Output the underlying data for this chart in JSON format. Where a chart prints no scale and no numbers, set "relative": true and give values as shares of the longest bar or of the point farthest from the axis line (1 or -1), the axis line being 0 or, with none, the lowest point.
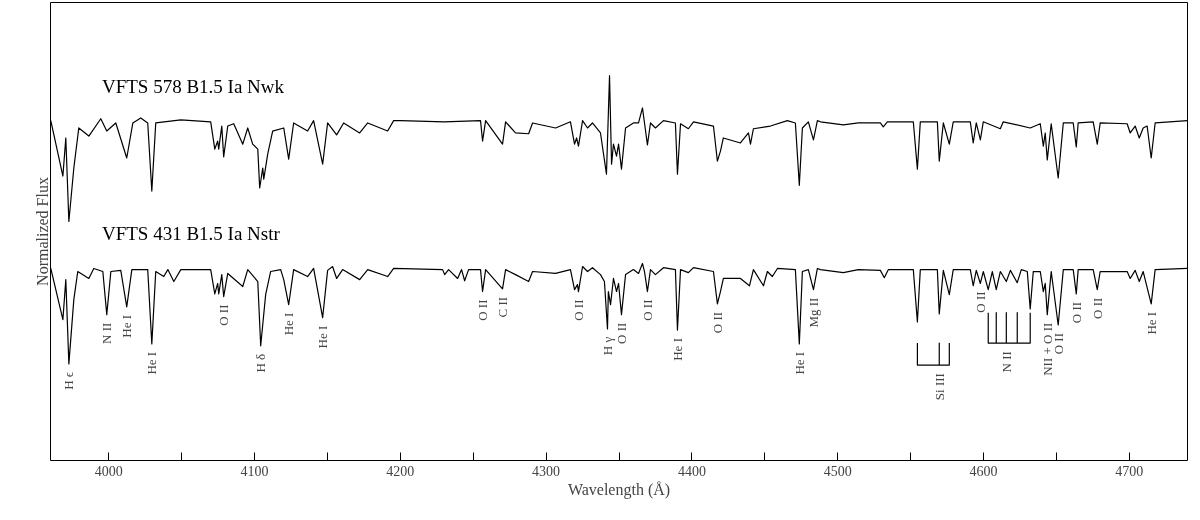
{
  "chart_data": {
    "type": "line",
    "relative": true,
    "xlabel": "Wavelength (Å)",
    "ylabel": "Normalized Flux",
    "xlim": [
      3960,
      4740
    ],
    "xticks": [
      4000,
      {
        "value": 4050,
        "label": null
      },
      4100,
      {
        "value": 4150,
        "label": null
      },
      4200,
      {
        "value": 4250,
        "label": null
      },
      4300,
      {
        "value": 4350,
        "label": null
      },
      4400,
      {
        "value": 4450,
        "label": null
      },
      4500,
      {
        "value": 4550,
        "label": null
      },
      4600,
      {
        "value": 4650,
        "label": null
      },
      4700
    ],
    "grid": false,
    "legend": false,
    "marker": "none",
    "line_style": "solid",
    "series": [
      {
        "name": "VFTS 578    B1.5 Ia Nwk",
        "color": "#000000",
        "x": [
          3960.2,
          3968.5,
          3970.5,
          3972.6,
          3976.0,
          3979.4,
          3986.3,
          3994.5,
          3998.6,
          4004.8,
          4012.3,
          4016.5,
          4021.9,
          4026.7,
          4029.5,
          4032.2,
          4049.4,
          4069.9,
          4072.7,
          4074.7,
          4075.4,
          4077.5,
          4078.8,
          4081.6,
          4085.7,
          4091.9,
          4095.3,
          4098.7,
          4102.2,
          4103.5,
          4105.6,
          4106.3,
          4109.0,
          4112.4,
          4120.0,
          4123.4,
          4126.8,
          4136.4,
          4140.5,
          4146.7,
          4150.1,
          4156.3,
          4161.1,
          4172.1,
          4177.6,
          4191.3,
          4195.4,
          4200.2,
          4230.0,
          4255.0,
          4256.4,
          4258.5,
          4270.1,
          4272.2,
          4279.0,
          4288.0,
          4290.7,
          4306.5,
          4316.7,
          4319.5,
          4320.9,
          4322.2,
          4325.0,
          4328.4,
          4331.8,
          4337.3,
          4341.4,
          4343.5,
          4344.9,
          4346.2,
          4348.3,
          4349.7,
          4351.7,
          4354.5,
          4359.9,
          4363.4,
          4366.1,
          4367.5,
          4369.5,
          4371.6,
          4375.0,
          4380.5,
          4388.7,
          4390.1,
          4392.2,
          4397.6,
          4401.1,
          4414.8,
          4417.5,
          4419.6,
          4421.6,
          4433.3,
          4438.8,
          4440.2,
          4442.2,
          4453.9,
          4465.5,
          4471.0,
          4473.7,
          4475.8,
          4479.9,
          4483.4,
          4486.1,
          4488.2,
          4503.9,
          4514.2,
          4529.3,
          4531.3,
          4534.1,
          4551.9,
          4554.7,
          4556.7,
          4568.4,
          4569.7,
          4572.5,
          4576.6,
          4579.3,
          4591.0,
          4593.0,
          4595.1,
          4597.9,
          4599.9,
          4611.6,
          4613.6,
          4632.1,
          4639.0,
          4641.1,
          4642.4,
          4643.8,
          4646.5,
          4651.3,
          4654.8,
          4661.6,
          4663.7,
          4665.0,
          4675.3,
          4678.1,
          4680.1,
          4698.6,
          4700.7,
          4704.1,
          4706.9,
          4709.6,
          4712.3,
          4715.1,
          4717.8,
          4740.0
        ],
        "values": [
          0.883,
          0.739,
          0.838,
          0.621,
          0.76,
          0.864,
          0.843,
          0.888,
          0.856,
          0.877,
          0.786,
          0.877,
          0.89,
          0.877,
          0.7,
          0.877,
          0.885,
          0.88,
          0.809,
          0.83,
          0.809,
          0.869,
          0.789,
          0.869,
          0.875,
          0.822,
          0.864,
          0.822,
          0.809,
          0.708,
          0.76,
          0.731,
          0.796,
          0.856,
          0.864,
          0.783,
          0.877,
          0.856,
          0.883,
          0.77,
          0.877,
          0.846,
          0.877,
          0.851,
          0.877,
          0.856,
          0.883,
          0.883,
          0.88,
          0.883,
          0.83,
          0.883,
          0.822,
          0.88,
          0.851,
          0.849,
          0.877,
          0.864,
          0.88,
          0.822,
          0.838,
          0.817,
          0.883,
          0.864,
          0.877,
          0.851,
          0.744,
          1.0,
          0.77,
          0.822,
          0.791,
          0.822,
          0.757,
          0.864,
          0.877,
          0.877,
          0.916,
          0.877,
          0.82,
          0.877,
          0.864,
          0.883,
          0.877,
          0.744,
          0.875,
          0.862,
          0.88,
          0.869,
          0.778,
          0.804,
          0.838,
          0.825,
          0.851,
          0.822,
          0.862,
          0.869,
          0.883,
          0.877,
          0.715,
          0.864,
          0.88,
          0.833,
          0.883,
          0.88,
          0.872,
          0.877,
          0.877,
          0.867,
          0.88,
          0.88,
          0.757,
          0.88,
          0.88,
          0.778,
          0.877,
          0.822,
          0.88,
          0.88,
          0.825,
          0.877,
          0.833,
          0.88,
          0.862,
          0.88,
          0.864,
          0.875,
          0.817,
          0.851,
          0.781,
          0.875,
          0.734,
          0.877,
          0.877,
          0.815,
          0.877,
          0.88,
          0.822,
          0.877,
          0.875,
          0.851,
          0.869,
          0.838,
          0.864,
          0.869,
          0.786,
          0.877,
          0.883
        ]
      },
      {
        "name": "VFTS 431    B1.5 Ia Nstr",
        "color": "#000000",
        "x": [
          3960.2,
          3968.5,
          3970.5,
          3972.6,
          3976.0,
          3978.7,
          3986.3,
          3989.7,
          3995.9,
          3998.6,
          4001.4,
          4008.2,
          4012.3,
          4015.8,
          4026.7,
          4029.5,
          4032.2,
          4037.7,
          4040.5,
          4044.6,
          4049.4,
          4069.9,
          4072.7,
          4074.7,
          4075.4,
          4077.5,
          4078.8,
          4081.6,
          4091.9,
          4095.3,
          4102.2,
          4104.2,
          4107.6,
          4111.0,
          4117.9,
          4120.0,
          4123.4,
          4126.8,
          4136.4,
          4140.5,
          4146.7,
          4150.1,
          4153.5,
          4156.3,
          4160.4,
          4172.1,
          4177.6,
          4191.3,
          4195.4,
          4229.0,
          4230.4,
          4233.1,
          4239.3,
          4242.0,
          4244.1,
          4246.8,
          4255.0,
          4256.4,
          4258.5,
          4270.1,
          4272.2,
          4279.0,
          4288.0,
          4290.7,
          4306.5,
          4316.7,
          4319.5,
          4321.5,
          4322.2,
          4325.0,
          4328.4,
          4331.8,
          4337.3,
          4340.0,
          4342.1,
          4342.7,
          4344.2,
          4346.2,
          4348.3,
          4349.7,
          4351.7,
          4354.5,
          4359.9,
          4363.4,
          4366.1,
          4367.5,
          4369.5,
          4371.6,
          4375.0,
          4380.5,
          4388.7,
          4390.1,
          4392.2,
          4397.6,
          4401.1,
          4414.8,
          4417.5,
          4419.6,
          4421.6,
          4433.3,
          4439.5,
          4442.2,
          4449.1,
          4451.8,
          4455.2,
          4458.7,
          4471.0,
          4473.7,
          4475.8,
          4479.9,
          4483.4,
          4486.1,
          4488.2,
          4503.9,
          4514.2,
          4529.3,
          4532.0,
          4534.8,
          4551.9,
          4554.7,
          4556.7,
          4568.4,
          4569.7,
          4572.5,
          4576.6,
          4579.3,
          4591.0,
          4593.0,
          4595.1,
          4597.9,
          4599.9,
          4603.3,
          4606.1,
          4608.8,
          4611.6,
          4615.7,
          4618.5,
          4623.2,
          4626.0,
          4630.1,
          4632.1,
          4634.2,
          4639.0,
          4641.1,
          4642.4,
          4643.8,
          4646.5,
          4651.3,
          4654.8,
          4661.6,
          4663.7,
          4665.0,
          4675.3,
          4678.1,
          4680.1,
          4698.6,
          4700.7,
          4704.1,
          4706.9,
          4709.6,
          4715.1,
          4717.8,
          4740.0
        ],
        "values": [
          0.499,
          0.366,
          0.47,
          0.251,
          0.418,
          0.491,
          0.473,
          0.499,
          0.491,
          0.379,
          0.491,
          0.494,
          0.399,
          0.496,
          0.496,
          0.303,
          0.491,
          0.478,
          0.496,
          0.465,
          0.496,
          0.496,
          0.433,
          0.46,
          0.433,
          0.483,
          0.426,
          0.486,
          0.452,
          0.496,
          0.465,
          0.298,
          0.431,
          0.491,
          0.496,
          0.47,
          0.405,
          0.496,
          0.478,
          0.499,
          0.371,
          0.494,
          0.504,
          0.473,
          0.496,
          0.47,
          0.496,
          0.478,
          0.499,
          0.496,
          0.483,
          0.496,
          0.473,
          0.496,
          0.467,
          0.496,
          0.496,
          0.439,
          0.496,
          0.446,
          0.496,
          0.483,
          0.465,
          0.491,
          0.486,
          0.496,
          0.444,
          0.457,
          0.439,
          0.504,
          0.491,
          0.501,
          0.483,
          0.465,
          0.342,
          0.439,
          0.405,
          0.473,
          0.439,
          0.46,
          0.379,
          0.483,
          0.496,
          0.486,
          0.512,
          0.491,
          0.439,
          0.496,
          0.483,
          0.501,
          0.496,
          0.339,
          0.496,
          0.488,
          0.501,
          0.491,
          0.407,
          0.439,
          0.473,
          0.473,
          0.454,
          0.496,
          0.454,
          0.491,
          0.478,
          0.499,
          0.496,
          0.303,
          0.491,
          0.496,
          0.444,
          0.499,
          0.496,
          0.488,
          0.496,
          0.494,
          0.475,
          0.496,
          0.496,
          0.36,
          0.496,
          0.496,
          0.381,
          0.494,
          0.431,
          0.496,
          0.496,
          0.454,
          0.494,
          0.46,
          0.491,
          0.444,
          0.491,
          0.444,
          0.491,
          0.465,
          0.494,
          0.462,
          0.496,
          0.491,
          0.394,
          0.491,
          0.491,
          0.439,
          0.46,
          0.379,
          0.491,
          0.352,
          0.496,
          0.496,
          0.433,
          0.496,
          0.496,
          0.444,
          0.491,
          0.491,
          0.473,
          0.494,
          0.465,
          0.491,
          0.407,
          0.496,
          0.499
        ]
      },
      {
        "color": "#000000",
        "x": [
          4554.7,
          4554.7,
          4569.7,
          4569.7,
          4569.7,
          4576.6,
          4576.6
        ],
        "values": [
          0.305,
          0.248,
          0.248,
          0.305,
          0.248,
          0.248,
          0.305
        ]
      },
      {
        "color": "#000000",
        "x": [
          4603.3,
          4603.3,
          4608.8,
          4608.8,
          4608.8,
          4615.7,
          4615.7,
          4615.7,
          4623.2,
          4623.2,
          4623.2,
          4632.1,
          4632.1
        ],
        "values": [
          0.384,
          0.305,
          0.305,
          0.384,
          0.305,
          0.305,
          0.384,
          0.305,
          0.305,
          0.384,
          0.305,
          0.305,
          0.384
        ]
      }
    ],
    "annotations": [
      {
        "text": "H ϵ",
        "x": 3972.6,
        "y": 0.251
      },
      {
        "text": "N II",
        "x": 3998.6,
        "y": 0.379
      },
      {
        "text": "He I",
        "x": 4012.3,
        "y": 0.399
      },
      {
        "text": "He I",
        "x": 4029.5,
        "y": 0.303
      },
      {
        "text": "O II",
        "x": 4078.8,
        "y": 0.426
      },
      {
        "text": "H δ",
        "x": 4104.2,
        "y": 0.298
      },
      {
        "text": "He I",
        "x": 4123.4,
        "y": 0.405
      },
      {
        "text": "He I",
        "x": 4146.7,
        "y": 0.371
      },
      {
        "text": "O II",
        "x": 4256.4,
        "y": 0.439
      },
      {
        "text": "C II",
        "x": 4270.1,
        "y": 0.446
      },
      {
        "text": "O II",
        "x": 4322.2,
        "y": 0.439
      },
      {
        "text": "H γ",
        "x": 4342.1,
        "y": 0.342
      },
      {
        "text": "O II",
        "x": 4351.7,
        "y": 0.379
      },
      {
        "text": "O II",
        "x": 4369.5,
        "y": 0.439
      },
      {
        "text": "He I",
        "x": 4390.1,
        "y": 0.339
      },
      {
        "text": "O II",
        "x": 4417.5,
        "y": 0.407
      },
      {
        "text": "He I",
        "x": 4473.7,
        "y": 0.303
      },
      {
        "text": "Mg II",
        "x": 4483.4,
        "y": 0.444
      },
      {
        "text": "Si III",
        "x": 4569.7,
        "y": 0.248
      },
      {
        "text": "O II",
        "x": 4597.9,
        "y": 0.46
      },
      {
        "text": "N II",
        "x": 4615.7,
        "y": 0.305
      },
      {
        "text": "NII + O II",
        "x": 4643.8,
        "y": 0.379
      },
      {
        "text": "O II",
        "x": 4651.3,
        "y": 0.352
      },
      {
        "text": "O II",
        "x": 4663.7,
        "y": 0.433
      },
      {
        "text": "O II",
        "x": 4678.1,
        "y": 0.444
      },
      {
        "text": "He I",
        "x": 4715.1,
        "y": 0.407
      }
    ]
  }
}
